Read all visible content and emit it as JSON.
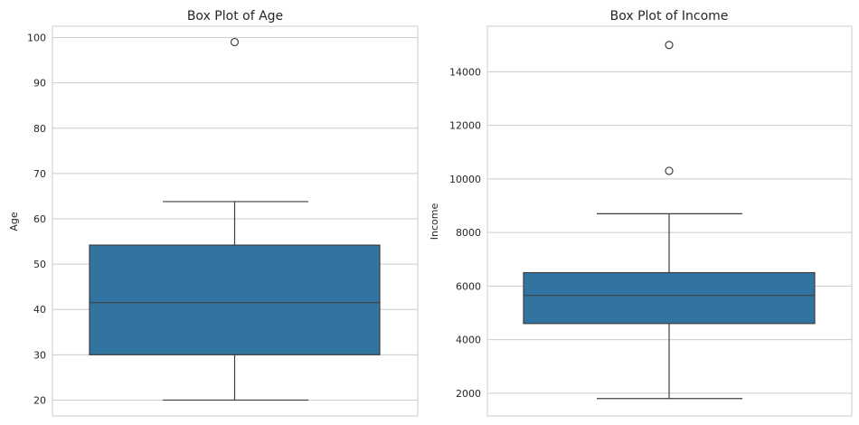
{
  "chart_data": [
    {
      "type": "box",
      "title": "Box Plot of Age",
      "xlabel": "",
      "ylabel": "Age",
      "ylim": [
        16.5,
        102.5
      ],
      "yticks": [
        20,
        30,
        40,
        50,
        60,
        70,
        80,
        90,
        100
      ],
      "grid": true,
      "box": {
        "whisker_low": 20,
        "q1": 30,
        "median": 41.5,
        "q3": 54.2,
        "whisker_high": 63.8,
        "outliers": [
          99
        ]
      },
      "color": "#3274a1"
    },
    {
      "type": "box",
      "title": "Box Plot of Income",
      "xlabel": "",
      "ylabel": "Income",
      "ylim": [
        1150,
        15700
      ],
      "yticks": [
        2000,
        4000,
        6000,
        8000,
        10000,
        12000,
        14000
      ],
      "grid": true,
      "box": {
        "whisker_low": 1800,
        "q1": 4600,
        "median": 5650,
        "q3": 6500,
        "whisker_high": 8700,
        "outliers": [
          10300,
          15000
        ]
      },
      "color": "#3274a1"
    }
  ]
}
